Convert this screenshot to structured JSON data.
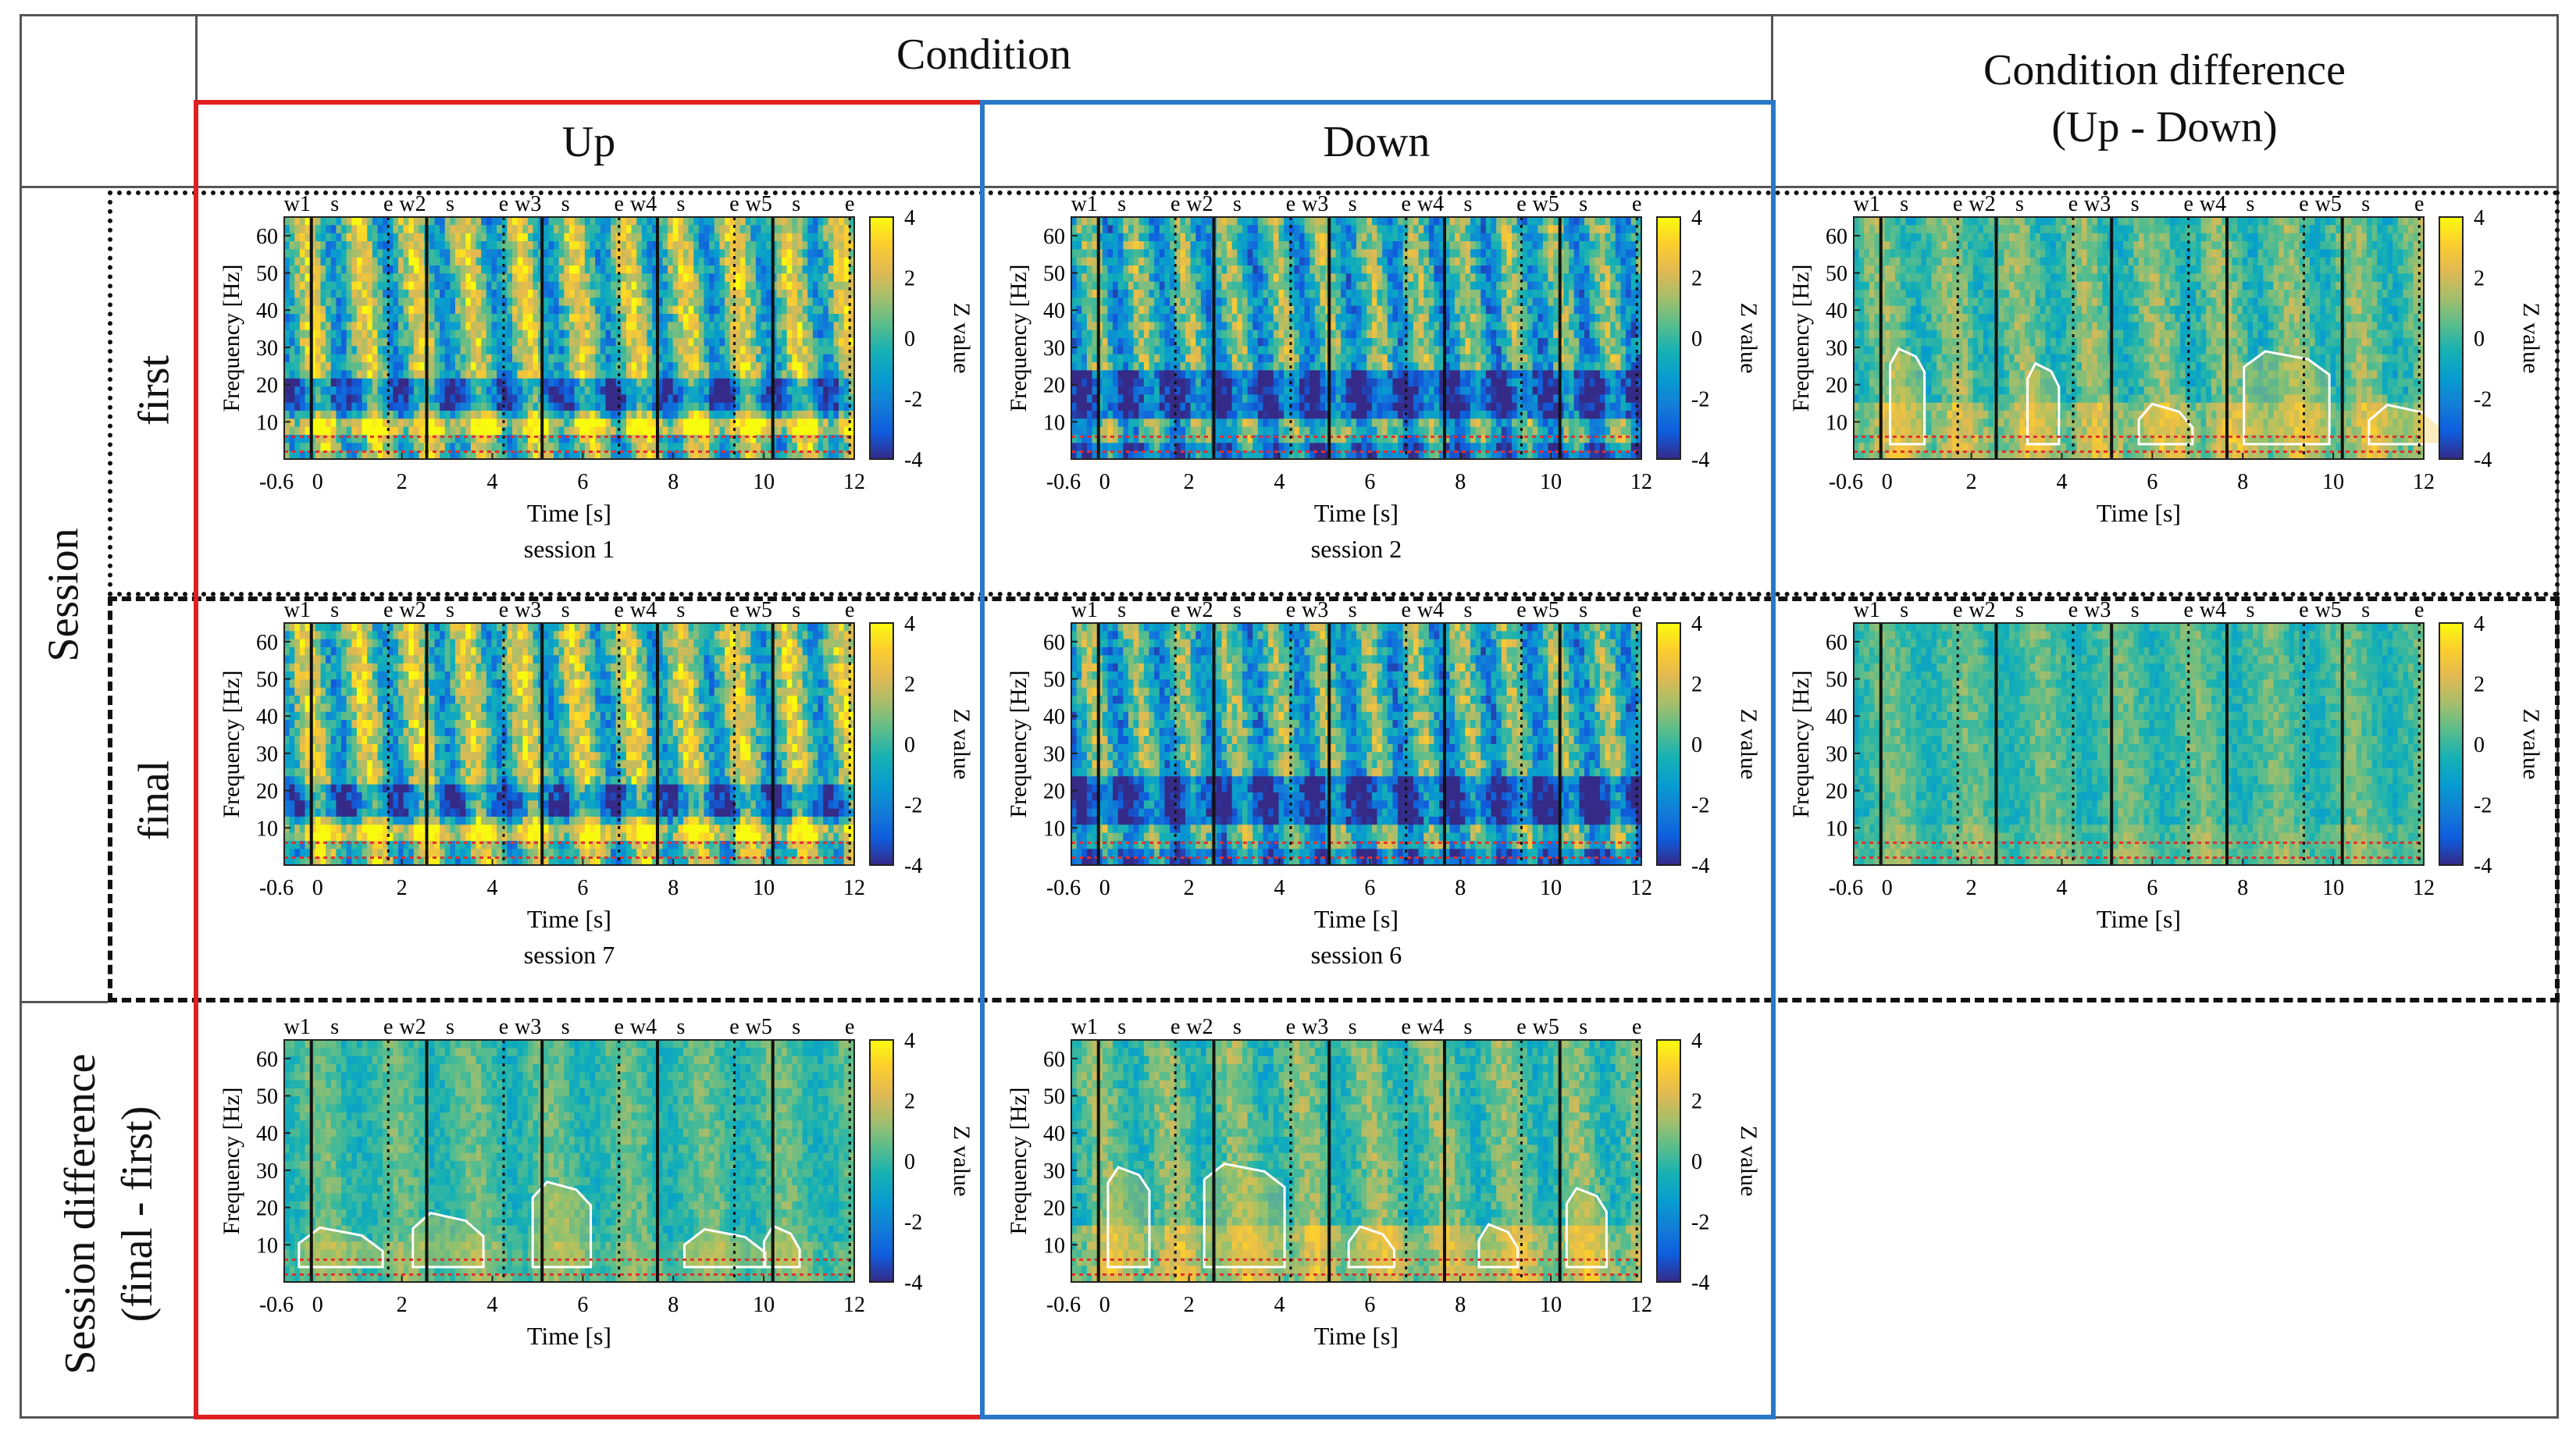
{
  "headers": {
    "condition": "Condition",
    "up": "Up",
    "down": "Down",
    "condition_difference_line1": "Condition difference",
    "condition_difference_line2": "(Up - Down)",
    "session": "Session",
    "first": "first",
    "final": "final",
    "session_difference_line1": "Session difference",
    "session_difference_line2": "(final - first)"
  },
  "colors": {
    "up_frame": "#e02020",
    "down_frame": "#2a78c8",
    "significance_contour": "#ffffff",
    "band_marker": "#e03030",
    "grid_line": "#555555"
  },
  "chart_data": [
    {
      "id": "up-first",
      "type": "heatmap",
      "variant": "session-up",
      "caption": "session 1",
      "contours": false
    },
    {
      "id": "down-first",
      "type": "heatmap",
      "variant": "session-down",
      "caption": "session 2",
      "contours": false
    },
    {
      "id": "diff-first",
      "type": "heatmap",
      "variant": "diff-strong",
      "caption": "",
      "contours": true
    },
    {
      "id": "up-final",
      "type": "heatmap",
      "variant": "session-up",
      "caption": "session 7",
      "contours": false
    },
    {
      "id": "down-final",
      "type": "heatmap",
      "variant": "session-down",
      "caption": "session 6",
      "contours": false
    },
    {
      "id": "diff-final",
      "type": "heatmap",
      "variant": "diff-weak",
      "caption": "",
      "contours": false
    },
    {
      "id": "up-sessdiff",
      "type": "heatmap",
      "variant": "diff-weak",
      "caption": "",
      "contours": true
    },
    {
      "id": "down-sessdiff",
      "type": "heatmap",
      "variant": "diff-strong",
      "caption": "",
      "contours": true
    }
  ],
  "axes": {
    "xlabel": "Time [s]",
    "ylabel": "Frequency [Hz]",
    "xlim": [
      -0.6,
      12
    ],
    "ylim": [
      0,
      65
    ],
    "xticks": [
      {
        "label": "-0.6",
        "v": -0.6
      },
      {
        "label": "0",
        "v": 0
      },
      {
        "label": "2",
        "v": 2
      },
      {
        "label": "4",
        "v": 4
      },
      {
        "label": "6",
        "v": 6
      },
      {
        "label": "8",
        "v": 8
      },
      {
        "label": "10",
        "v": 10
      },
      {
        "label": "12",
        "v": 12
      }
    ],
    "yticks": [
      10,
      20,
      30,
      40,
      50,
      60
    ],
    "band_markers_hz": [
      2,
      6
    ],
    "colorbar": {
      "label": "Z value",
      "ticks": [
        4,
        2,
        0,
        -2,
        -4
      ],
      "range": [
        -4,
        4
      ],
      "colormap": "parula"
    },
    "events": [
      {
        "label": "w1",
        "t": 0.0,
        "kind": "window"
      },
      {
        "label": "s",
        "t": 0.0,
        "kind": "start"
      },
      {
        "label": "e",
        "t": 1.7,
        "kind": "end"
      },
      {
        "label": "w2",
        "t": 2.55,
        "kind": "window"
      },
      {
        "label": "s",
        "t": 2.55,
        "kind": "start"
      },
      {
        "label": "e",
        "t": 4.25,
        "kind": "end"
      },
      {
        "label": "w3",
        "t": 5.1,
        "kind": "window"
      },
      {
        "label": "s",
        "t": 5.1,
        "kind": "start"
      },
      {
        "label": "e",
        "t": 6.8,
        "kind": "end"
      },
      {
        "label": "w4",
        "t": 7.65,
        "kind": "window"
      },
      {
        "label": "s",
        "t": 7.65,
        "kind": "start"
      },
      {
        "label": "e",
        "t": 9.35,
        "kind": "end"
      },
      {
        "label": "w5",
        "t": 10.2,
        "kind": "window"
      },
      {
        "label": "s",
        "t": 10.2,
        "kind": "start"
      },
      {
        "label": "e",
        "t": 11.9,
        "kind": "end"
      }
    ]
  }
}
